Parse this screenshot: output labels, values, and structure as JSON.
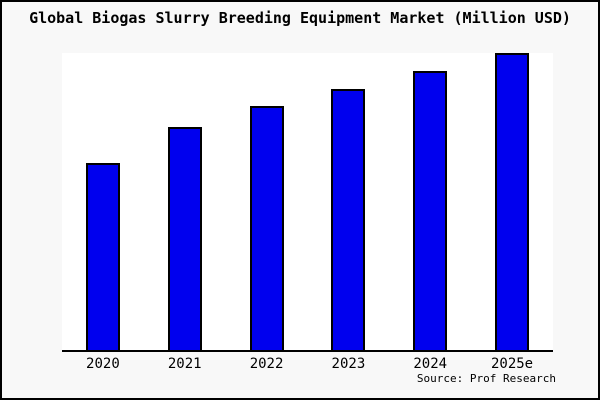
{
  "title": "Global Biogas Slurry Breeding Equipment Market (Million USD)",
  "source_label": "Source: Prof Research",
  "colors": {
    "bar_fill": "#0000ee",
    "bar_border": "#000000",
    "plot_background": "#ffffff",
    "page_background": "#f8f8f8",
    "frame_border": "#000000",
    "text": "#000000"
  },
  "chart_data": {
    "type": "bar",
    "title": "Global Biogas Slurry Breeding Equipment Market (Million USD)",
    "categories": [
      "2020",
      "2021",
      "2022",
      "2023",
      "2024",
      "2025e"
    ],
    "values": [
      63,
      75,
      82,
      88,
      94,
      100
    ],
    "units": "relative index (y-axis unlabeled in chart)",
    "xlabel": "",
    "ylabel": "",
    "ylim": [
      0,
      100
    ],
    "grid": false,
    "legend": false,
    "annotations": [
      "Source: Prof Research"
    ]
  }
}
